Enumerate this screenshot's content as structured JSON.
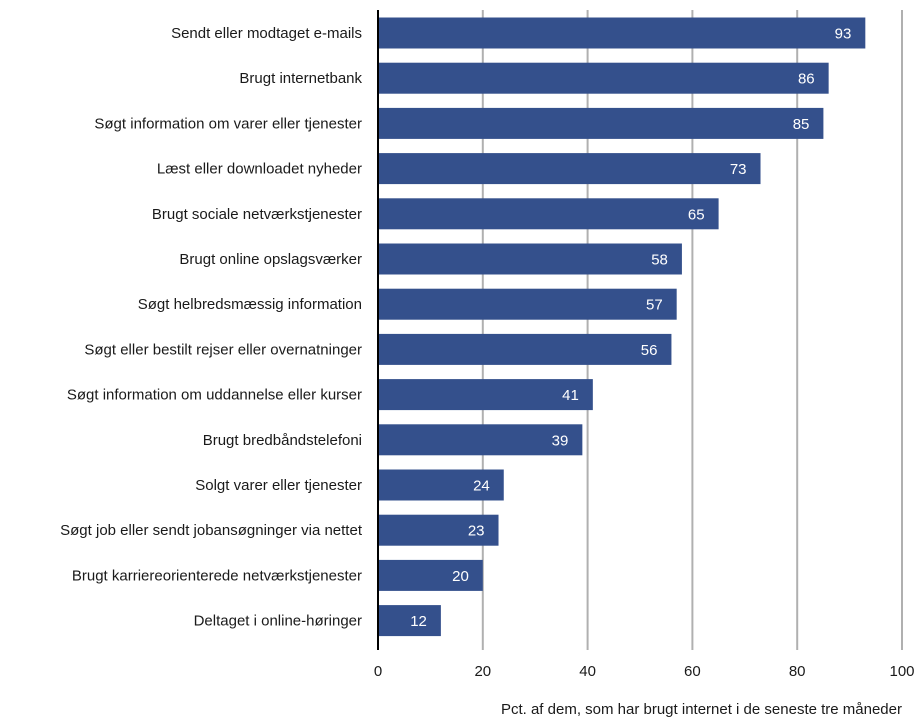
{
  "chart_data": {
    "type": "bar",
    "orientation": "horizontal",
    "categories": [
      "Sendt eller modtaget e-mails",
      "Brugt internetbank",
      "Søgt information om varer eller tjenester",
      "Læst eller downloadet nyheder",
      "Brugt sociale netværkstjenester",
      "Brugt online opslagsværker",
      "Søgt helbredsmæssig information",
      "Søgt eller bestilt rejser eller overnatninger",
      "Søgt information om uddannelse eller kurser",
      "Brugt bredbåndstelefoni",
      "Solgt varer eller tjenester",
      "Søgt job eller sendt jobansøgninger via nettet",
      "Brugt karriereorienterede netværkstjenester",
      "Deltaget i online-høringer"
    ],
    "values": [
      93,
      86,
      85,
      73,
      65,
      58,
      57,
      56,
      41,
      39,
      24,
      23,
      20,
      12
    ],
    "data_labels": [
      "93",
      "86",
      "85",
      "73",
      "65",
      "58",
      "57",
      "56",
      "41",
      "39",
      "24",
      "23",
      "20",
      "12"
    ],
    "xlabel": "Pct. af dem, som har brugt internet i de seneste tre måneder",
    "xlim": [
      0,
      100
    ],
    "xticks": [
      0,
      20,
      40,
      60,
      80,
      100
    ],
    "xtick_labels": [
      "0",
      "20",
      "40",
      "60",
      "80",
      "100"
    ],
    "grid": "vertical",
    "legend": "none",
    "bar_color": "#34508c",
    "grid_color": "#b0b0b0",
    "axis_color": "#000000"
  }
}
